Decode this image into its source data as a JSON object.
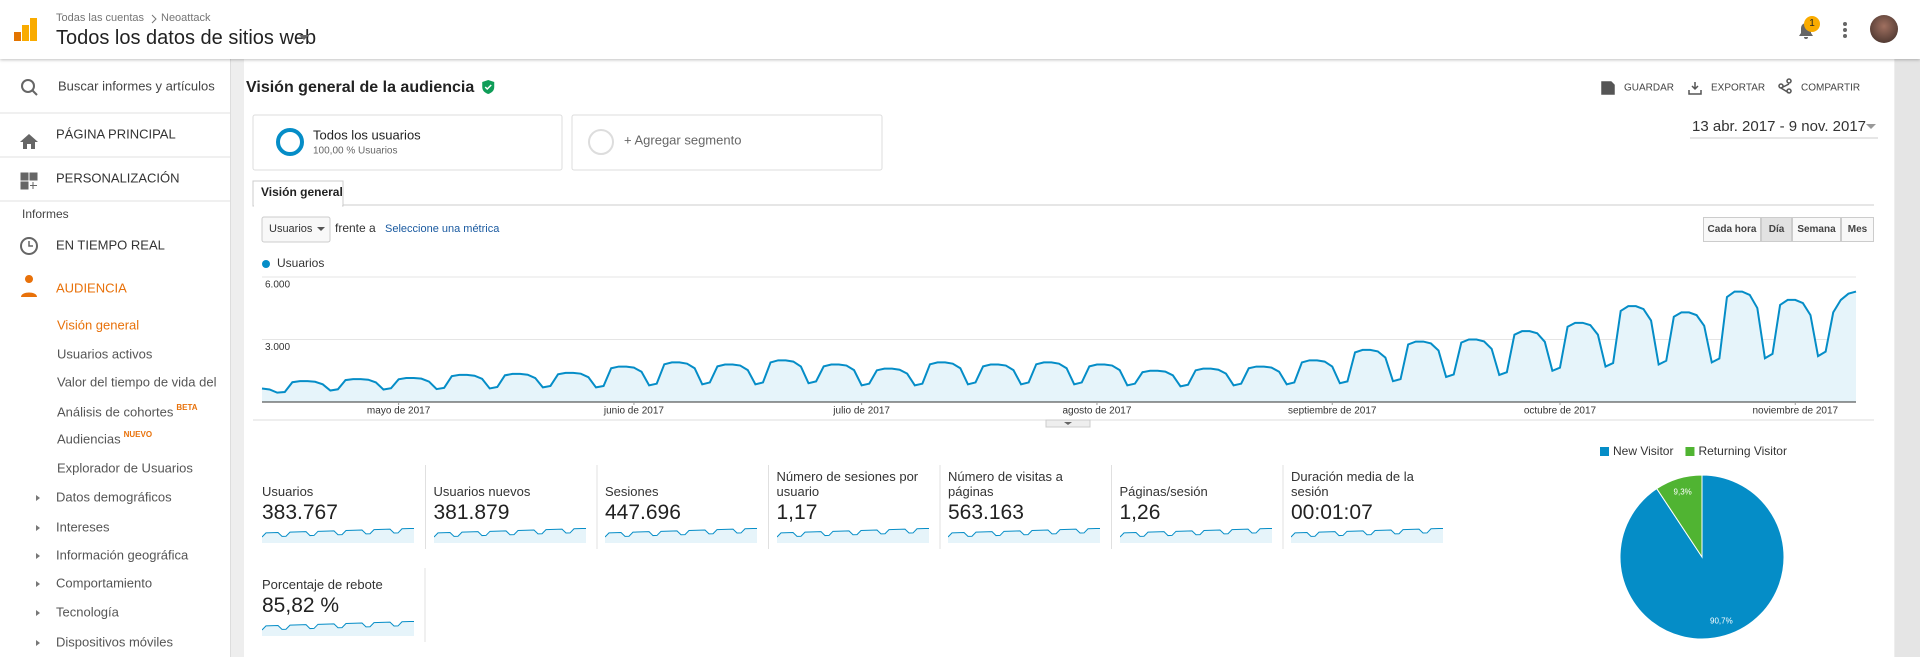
{
  "header": {
    "breadcrumb_account": "Todas las cuentas",
    "breadcrumb_property": "Neoattack",
    "title": "Todos los datos de sitios web",
    "notifications": "1"
  },
  "sidebar": {
    "search": "Buscar informes y artículos",
    "items": [
      "PÁGINA PRINCIPAL",
      "PERSONALIZACIÓN"
    ],
    "section": "Informes",
    "reports": [
      "EN TIEMPO REAL",
      "AUDIENCIA"
    ],
    "audience_items": [
      {
        "label": "Visión general"
      },
      {
        "label": "Usuarios activos"
      },
      {
        "label": "Valor del tiempo de vida del"
      },
      {
        "label": "Análisis de cohortes",
        "badge": "BETA"
      },
      {
        "label": "Audiencias",
        "badge": "NUEVO"
      },
      {
        "label": "Explorador de Usuarios"
      }
    ],
    "audience_groups": [
      "Datos demográficos",
      "Intereses",
      "Información geográfica",
      "Comportamiento",
      "Tecnología",
      "Dispositivos móviles"
    ]
  },
  "main": {
    "title": "Visión general de la audiencia",
    "actions": [
      "GUARDAR",
      "EXPORTAR",
      "COMPARTIR"
    ],
    "segment": {
      "name": "Todos los usuarios",
      "detail": "100,00 % Usuarios"
    },
    "add_segment": "+ Agregar segmento",
    "date_range": "13 abr. 2017 - 9 nov. 2017",
    "tab": "Visión general",
    "metric_select": "Usuarios",
    "versus": "frente a",
    "select_metric": "Seleccione una métrica",
    "granularity": [
      "Cada hora",
      "Día",
      "Semana",
      "Mes"
    ],
    "granularity_selected": 1,
    "metrics": [
      {
        "label": "Usuarios",
        "value": "383.767"
      },
      {
        "label": "Usuarios nuevos",
        "value": "381.879"
      },
      {
        "label": "Sesiones",
        "value": "447.696"
      },
      {
        "label": "Número de sesiones por usuario",
        "value": "1,17"
      },
      {
        "label": "Número de visitas a páginas",
        "value": "563.163"
      },
      {
        "label": "Páginas/sesión",
        "value": "1,26"
      },
      {
        "label": "Duración media de la sesión",
        "value": "00:01:07"
      },
      {
        "label": "Porcentaje de rebote",
        "value": "85,82 %"
      }
    ]
  },
  "chart_data": [
    {
      "type": "line",
      "series": [
        {
          "name": "Usuarios",
          "color": "#058dc7",
          "values": [
            650,
            600,
            450,
            480,
            950,
            1000,
            1000,
            970,
            850,
            550,
            610,
            1050,
            1100,
            1100,
            1070,
            940,
            600,
            660,
            1090,
            1150,
            1150,
            1120,
            980,
            620,
            680,
            1240,
            1300,
            1300,
            1260,
            1110,
            650,
            720,
            1280,
            1350,
            1350,
            1310,
            1150,
            700,
            770,
            1330,
            1400,
            1400,
            1360,
            1190,
            700,
            770,
            1620,
            1700,
            1700,
            1650,
            1450,
            800,
            880,
            1810,
            1900,
            1900,
            1840,
            1620,
            850,
            940,
            1710,
            1800,
            1800,
            1750,
            1530,
            850,
            940,
            1900,
            2000,
            2000,
            1940,
            1700,
            900,
            990,
            1710,
            1800,
            1800,
            1750,
            1530,
            800,
            880,
            1520,
            1600,
            1600,
            1550,
            1360,
            800,
            880,
            1810,
            1900,
            1900,
            1840,
            1620,
            850,
            940,
            1710,
            1800,
            1800,
            1750,
            1530,
            850,
            940,
            1810,
            1900,
            1900,
            1840,
            1620,
            850,
            940,
            1710,
            1800,
            1800,
            1750,
            1530,
            800,
            880,
            1430,
            1500,
            1500,
            1460,
            1280,
            750,
            830,
            1520,
            1600,
            1600,
            1550,
            1360,
            800,
            880,
            1620,
            1700,
            1700,
            1650,
            1450,
            850,
            940,
            1900,
            2000,
            2000,
            1940,
            1700,
            900,
            990,
            2380,
            2500,
            2500,
            2430,
            2130,
            1000,
            1100,
            2760,
            2900,
            2900,
            2810,
            2470,
            1200,
            1320,
            2850,
            3000,
            3000,
            2910,
            2550,
            1300,
            1430,
            3230,
            3400,
            3400,
            3300,
            2890,
            1500,
            1650,
            3610,
            3800,
            3800,
            3690,
            3230,
            1700,
            1870,
            4370,
            4600,
            4600,
            4460,
            3910,
            1800,
            1980,
            4090,
            4300,
            4300,
            4170,
            3660,
            1900,
            2090,
            5040,
            5300,
            5300,
            5140,
            4510,
            2100,
            2310,
            4660,
            4900,
            4900,
            4750,
            4170,
            2200,
            2420,
            4300,
            4900,
            5200,
            5300
          ]
        }
      ],
      "ylim": [
        0,
        6000
      ],
      "yticks": [
        {
          "value": 3000,
          "label": "3.000"
        },
        {
          "value": 6000,
          "label": "6.000"
        }
      ],
      "grid": true,
      "xlim": [
        0,
        210
      ],
      "xticks": [
        {
          "value": 18,
          "label": "mayo de 2017"
        },
        {
          "value": 49,
          "label": "junio de 2017"
        },
        {
          "value": 79,
          "label": "julio de 2017"
        },
        {
          "value": 110,
          "label": "agosto de 2017"
        },
        {
          "value": 141,
          "label": "septiembre de 2017"
        },
        {
          "value": 171,
          "label": "octubre de 2017"
        },
        {
          "value": 202,
          "label": "noviembre de 2017"
        }
      ]
    },
    {
      "type": "pie",
      "categories": [
        "New Visitor",
        "Returning Visitor"
      ],
      "values": [
        90.7,
        9.3
      ],
      "value_labels": [
        "90,7%",
        "9,3%"
      ],
      "colors": [
        "#058dc7",
        "#50b432"
      ]
    }
  ]
}
